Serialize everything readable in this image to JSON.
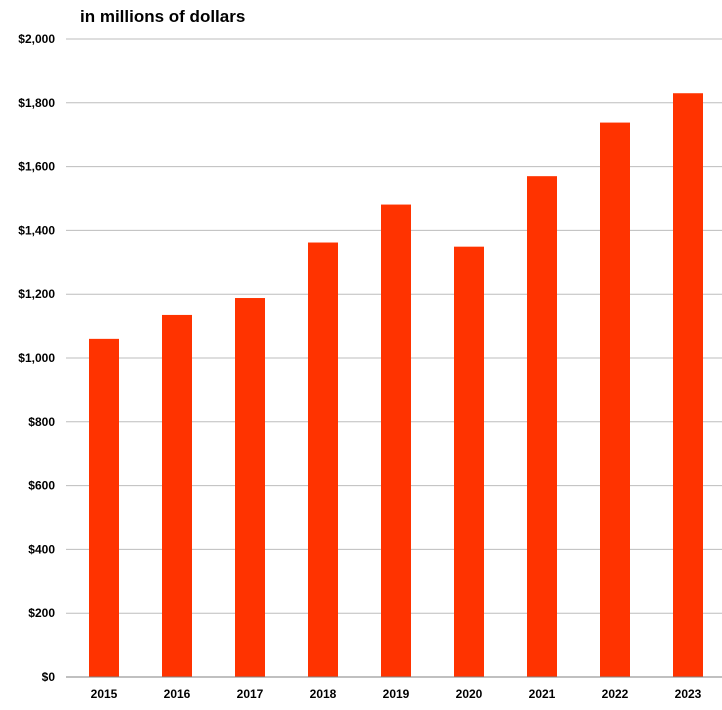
{
  "chart_data": {
    "type": "bar",
    "title": "",
    "unit_label": "in millions of dollars",
    "xlabel": "",
    "ylabel": "",
    "categories": [
      "2015",
      "2016",
      "2017",
      "2018",
      "2019",
      "2020",
      "2021",
      "2022",
      "2023"
    ],
    "values": [
      1060,
      1135,
      1188,
      1362,
      1481,
      1349,
      1570,
      1738,
      1830
    ],
    "ylim": [
      0,
      2000
    ],
    "yticks": [
      0,
      200,
      400,
      600,
      800,
      1000,
      1200,
      1400,
      1600,
      1800,
      2000
    ],
    "ytick_labels": [
      "$0",
      "$200",
      "$400",
      "$600",
      "$800",
      "$1,000",
      "$1,200",
      "$1,400",
      "$1,600",
      "$1,800",
      "$2,000"
    ],
    "bar_color": "#ff3300",
    "grid": true,
    "legend": "none"
  }
}
